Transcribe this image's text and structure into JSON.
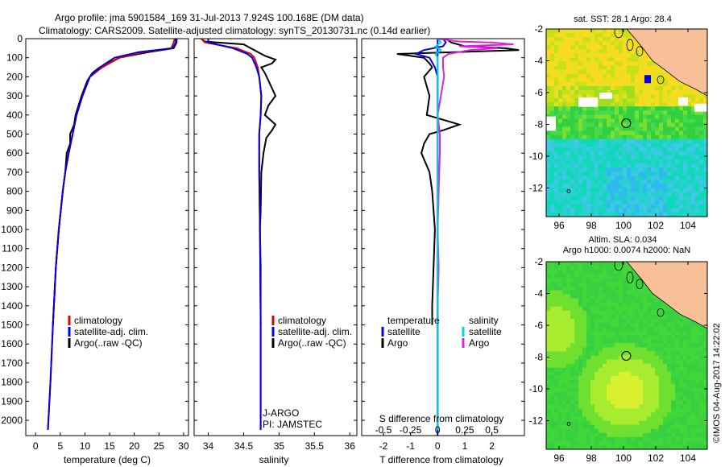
{
  "header": {
    "line1": "Argo profile: jma 5901584_169 31-Jul-2013 7.924S 100.168E (DM data)",
    "line2": "Climatology: CARS2009. Satellite-adjusted climatology: synTS_20130731.nc (0.14d earlier)"
  },
  "footer": {
    "stamp": "©IMOS 04-Aug-2017 14:22:02"
  },
  "colors": {
    "climatology": "#e00000",
    "satellite": "#0000e0",
    "argo": "#000000",
    "sal_sat": "#00d8e0",
    "sal_argo": "#e020e0",
    "land": "#f8c098"
  },
  "chart_data": [
    {
      "id": "temperature",
      "type": "line",
      "xlabel": "temperature (deg C)",
      "ylabel": "",
      "xlim": [
        -2,
        31
      ],
      "ylim": [
        2080,
        0
      ],
      "xticks": [
        "0",
        "5",
        "10",
        "15",
        "20",
        "25",
        "30"
      ],
      "xtick_values": [
        0,
        5,
        10,
        15,
        20,
        25,
        30
      ],
      "yticks": [
        "0",
        "100",
        "200",
        "300",
        "400",
        "500",
        "600",
        "700",
        "800",
        "900",
        "1000",
        "1100",
        "1200",
        "1300",
        "1400",
        "1500",
        "1600",
        "1700",
        "1800",
        "1900",
        "2000"
      ],
      "ytick_values": [
        0,
        100,
        200,
        300,
        400,
        500,
        600,
        700,
        800,
        900,
        1000,
        1100,
        1200,
        1300,
        1400,
        1500,
        1600,
        1700,
        1800,
        1900,
        2000
      ],
      "legend": [
        "climatology",
        "satellite-adj. clim.",
        "Argo(..raw -QC)"
      ],
      "series": [
        {
          "name": "climatology",
          "depth": [
            0,
            20,
            50,
            70,
            100,
            150,
            200,
            300,
            400,
            500,
            600,
            700,
            800,
            1000,
            1200,
            1500,
            1800,
            2050
          ],
          "values": [
            28.2,
            28.0,
            27.5,
            22,
            17,
            13.5,
            11,
            9.5,
            8.3,
            7.5,
            6.7,
            6.0,
            5.5,
            4.7,
            4.1,
            3.5,
            3.0,
            2.5
          ]
        },
        {
          "name": "satellite-adj. clim.",
          "depth": [
            0,
            20,
            50,
            70,
            100,
            150,
            200,
            300,
            400,
            500,
            600,
            700,
            800,
            1000,
            1200,
            1500,
            1800,
            2050
          ],
          "values": [
            28.4,
            28.4,
            27.8,
            21,
            16,
            13.0,
            11,
            9.5,
            8.3,
            7.5,
            6.7,
            6.0,
            5.5,
            4.7,
            4.1,
            3.5,
            3.0,
            2.5
          ]
        },
        {
          "name": "Argo(..raw -QC)",
          "depth": [
            0,
            20,
            50,
            70,
            100,
            150,
            180,
            220,
            300,
            400,
            450,
            500,
            550,
            600,
            700,
            800,
            900,
            1000,
            1200,
            1400,
            1500
          ],
          "values": [
            28.6,
            28.6,
            28.0,
            23,
            17,
            13.0,
            11.5,
            10.5,
            9.3,
            8.1,
            7.8,
            7.0,
            7.0,
            6.3,
            6.0,
            5.5,
            5.1,
            4.7,
            4.1,
            3.7,
            3.5
          ]
        }
      ]
    },
    {
      "id": "salinity",
      "type": "line",
      "xlabel": "salinity",
      "xlim": [
        33.8,
        36.1
      ],
      "ylim": [
        2080,
        0
      ],
      "xticks": [
        "34",
        "34.5",
        "35",
        "35.5",
        "36"
      ],
      "xtick_values": [
        34,
        34.5,
        35,
        35.5,
        36
      ],
      "legend": [
        "climatology",
        "satellite-adj. clim.",
        "Argo(..raw -QC)"
      ],
      "annotations": [
        "J-ARGO",
        "PI: JAMSTEC"
      ],
      "series": [
        {
          "name": "climatology",
          "depth": [
            0,
            20,
            50,
            80,
            100,
            150,
            200,
            300,
            400,
            500,
            700,
            1000,
            1500,
            2050
          ],
          "values": [
            33.9,
            33.95,
            34.4,
            34.6,
            34.65,
            34.7,
            34.72,
            34.75,
            34.74,
            34.72,
            34.72,
            34.73,
            34.74,
            34.74
          ]
        },
        {
          "name": "satellite-adj. clim.",
          "depth": [
            0,
            20,
            50,
            80,
            100,
            150,
            200,
            300,
            400,
            500,
            700,
            1000,
            1500,
            2050
          ],
          "values": [
            34.0,
            34.0,
            34.35,
            34.55,
            34.62,
            34.68,
            34.72,
            34.75,
            34.74,
            34.72,
            34.72,
            34.73,
            34.74,
            34.74
          ]
        },
        {
          "name": "Argo(..raw -QC)",
          "depth": [
            0,
            15,
            30,
            50,
            70,
            90,
            110,
            130,
            150,
            180,
            220,
            260,
            300,
            350,
            400,
            450,
            480,
            520,
            600,
            700,
            900,
            1000,
            1200,
            1500
          ],
          "values": [
            33.9,
            33.95,
            34.5,
            34.6,
            34.7,
            34.8,
            34.95,
            34.9,
            34.75,
            34.8,
            34.85,
            34.9,
            34.95,
            34.85,
            34.8,
            34.95,
            34.9,
            34.82,
            34.78,
            34.75,
            34.74,
            34.73,
            34.74,
            34.74
          ]
        }
      ]
    },
    {
      "id": "difference",
      "type": "line",
      "xlabel": "T difference from climatology",
      "xlabel_top": "S difference from climatology",
      "xlim": [
        -2.8,
        3.2
      ],
      "ylim": [
        2080,
        0
      ],
      "xticks": [
        "-2",
        "-1",
        "0",
        "1",
        "2"
      ],
      "xtick_values": [
        -2,
        -1,
        0,
        1,
        2
      ],
      "sticks": [
        "-0.5",
        "-0.25",
        "0",
        "0.25",
        "0.5"
      ],
      "stick_values": [
        -0.5,
        -0.25,
        0,
        0.25,
        0.5
      ],
      "s_scale": 4,
      "legend_left": {
        "title": "temperature",
        "items": [
          "satellite",
          "Argo"
        ]
      },
      "legend_right": {
        "title": "salinity",
        "items": [
          "satellite",
          "Argo"
        ]
      },
      "series": [
        {
          "name": "T satellite",
          "depth": [
            0,
            20,
            40,
            60,
            80,
            100,
            150,
            200,
            300,
            500,
            1000,
            2050
          ],
          "values": [
            0.2,
            0.3,
            0.2,
            -0.5,
            -0.8,
            -0.3,
            -0.1,
            0,
            0,
            0,
            0,
            0
          ]
        },
        {
          "name": "T Argo",
          "depth": [
            0,
            20,
            40,
            50,
            60,
            80,
            100,
            130,
            150,
            200,
            250,
            300,
            400,
            450,
            480,
            500,
            550,
            600,
            700,
            800,
            1000,
            1400,
            1500
          ],
          "values": [
            0.3,
            0.5,
            1.0,
            2.5,
            3.0,
            -1.5,
            -0.5,
            -0.3,
            -0.2,
            -0.5,
            -0.4,
            -0.3,
            -0.4,
            0.8,
            0.2,
            -0.3,
            -0.5,
            -0.6,
            -0.3,
            -0.2,
            -0.1,
            -0.2,
            -0.2
          ]
        },
        {
          "name": "S satellite",
          "depth": [
            0,
            20,
            40,
            60,
            80,
            100,
            150,
            200,
            300,
            500,
            1000,
            2050
          ],
          "values": [
            0.0,
            0.03,
            -0.02,
            0.03,
            -0.02,
            0.0,
            0.0,
            0.0,
            0.0,
            0.0,
            0.0,
            0.0
          ]
        },
        {
          "name": "S Argo",
          "depth": [
            0,
            15,
            20,
            30,
            40,
            50,
            60,
            80,
            100,
            150,
            200,
            300,
            400,
            500,
            600,
            800,
            1000,
            1200,
            1400,
            1500
          ],
          "values": [
            0.0,
            0.2,
            0.5,
            0.7,
            0.2,
            0.55,
            0.3,
            0.1,
            0.05,
            0.05,
            0.06,
            0.03,
            0.0,
            0.02,
            0.02,
            0.01,
            0.0,
            0.01,
            0.0,
            0.0
          ]
        }
      ]
    },
    {
      "id": "sst_map",
      "type": "heatmap",
      "title": "sat. SST: 28.1  Argo: 28.4",
      "xlim": [
        95.2,
        105.2
      ],
      "ylim": [
        -13.8,
        -2
      ],
      "xticks": [
        "96",
        "98",
        "100",
        "102",
        "104"
      ],
      "xtick_values": [
        96,
        98,
        100,
        102,
        104
      ],
      "yticks": [
        "-2",
        "-4",
        "-6",
        "-8",
        "-10",
        "-12"
      ],
      "ytick_values": [
        -2,
        -4,
        -6,
        -8,
        -10,
        -12
      ],
      "marker": {
        "lon": 100.168,
        "lat": -7.924
      }
    },
    {
      "id": "sla_map",
      "type": "heatmap",
      "title": "Altim. SLA: 0.034",
      "subtitle": "Argo h1000: 0.0074  h2000: NaN",
      "xlim": [
        95.2,
        105.2
      ],
      "ylim": [
        -13.8,
        -2
      ],
      "xticks": [
        "96",
        "98",
        "100",
        "102",
        "104"
      ],
      "xtick_values": [
        96,
        98,
        100,
        102,
        104
      ],
      "yticks": [
        "-2",
        "-4",
        "-6",
        "-8",
        "-10",
        "-12"
      ],
      "ytick_values": [
        -2,
        -4,
        -6,
        -8,
        -10,
        -12
      ],
      "marker": {
        "lon": 100.168,
        "lat": -7.924
      }
    }
  ]
}
